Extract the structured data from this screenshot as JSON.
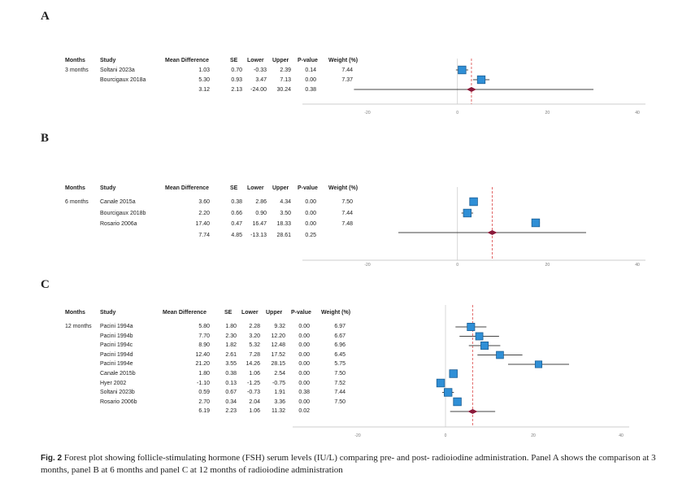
{
  "panels": [
    {
      "letter": "A",
      "headers": [
        "Months",
        "Study",
        "Mean Difference",
        "SE",
        "Lower",
        "Upper",
        "P-value",
        "Weight (%)"
      ],
      "group_label": "3 months",
      "rows": [
        {
          "study": "Soltani 2023a",
          "md": "1.03",
          "se": "0.70",
          "lower": "-0.33",
          "upper": "2.39",
          "p": "0.14",
          "w": "7.44"
        },
        {
          "study": "Bourcigaux 2018a",
          "md": "5.30",
          "se": "0.93",
          "lower": "3.47",
          "upper": "7.13",
          "p": "0.00",
          "w": "7.37"
        },
        {
          "study": "",
          "md": "3.12",
          "se": "2.13",
          "lower": "-24.00",
          "upper": "30.24",
          "p": "0.38",
          "w": ""
        }
      ],
      "ticks": [
        "-20",
        "0",
        "20",
        "40"
      ]
    },
    {
      "letter": "B",
      "headers": [
        "Months",
        "Study",
        "Mean Difference",
        "SE",
        "Lower",
        "Upper",
        "P-value",
        "Weight (%)"
      ],
      "group_label": "6 months",
      "rows": [
        {
          "study": "Canale 2015a",
          "md": "3.60",
          "se": "0.38",
          "lower": "2.86",
          "upper": "4.34",
          "p": "0.00",
          "w": "7.50"
        },
        {
          "study": "Bourcigaux 2018b",
          "md": "2.20",
          "se": "0.66",
          "lower": "0.90",
          "upper": "3.50",
          "p": "0.00",
          "w": "7.44"
        },
        {
          "study": "Rosario 2006a",
          "md": "17.40",
          "se": "0.47",
          "lower": "16.47",
          "upper": "18.33",
          "p": "0.00",
          "w": "7.48"
        },
        {
          "study": "",
          "md": "7.74",
          "se": "4.85",
          "lower": "-13.13",
          "upper": "28.61",
          "p": "0.25",
          "w": ""
        }
      ],
      "ticks": [
        "-20",
        "0",
        "20",
        "40"
      ]
    },
    {
      "letter": "C",
      "headers": [
        "Months",
        "Study",
        "Mean Difference",
        "SE",
        "Lower",
        "Upper",
        "P-value",
        "Weight (%)"
      ],
      "group_label": "12 months",
      "rows": [
        {
          "study": "Pacini 1994a",
          "md": "5.80",
          "se": "1.80",
          "lower": "2.28",
          "upper": "9.32",
          "p": "0.00",
          "w": "6.97"
        },
        {
          "study": "Pacini 1994b",
          "md": "7.70",
          "se": "2.30",
          "lower": "3.20",
          "upper": "12.20",
          "p": "0.00",
          "w": "6.67"
        },
        {
          "study": "Pacini 1994c",
          "md": "8.90",
          "se": "1.82",
          "lower": "5.32",
          "upper": "12.48",
          "p": "0.00",
          "w": "6.96"
        },
        {
          "study": "Pacini 1994d",
          "md": "12.40",
          "se": "2.61",
          "lower": "7.28",
          "upper": "17.52",
          "p": "0.00",
          "w": "6.45"
        },
        {
          "study": "Pacini 1994e",
          "md": "21.20",
          "se": "3.55",
          "lower": "14.26",
          "upper": "28.15",
          "p": "0.00",
          "w": "5.75"
        },
        {
          "study": "Canale 2015b",
          "md": "1.80",
          "se": "0.38",
          "lower": "1.06",
          "upper": "2.54",
          "p": "0.00",
          "w": "7.50"
        },
        {
          "study": "Hyer 2002",
          "md": "-1.10",
          "se": "0.13",
          "lower": "-1.25",
          "upper": "-0.75",
          "p": "0.00",
          "w": "7.52"
        },
        {
          "study": "Soltani 2023b",
          "md": "0.59",
          "se": "0.67",
          "lower": "-0.73",
          "upper": "1.91",
          "p": "0.38",
          "w": "7.44"
        },
        {
          "study": "Rosario 2006b",
          "md": "2.70",
          "se": "0.34",
          "lower": "2.04",
          "upper": "3.36",
          "p": "0.00",
          "w": "7.50"
        },
        {
          "study": "",
          "md": "6.19",
          "se": "2.23",
          "lower": "1.06",
          "upper": "11.32",
          "p": "0.02",
          "w": ""
        }
      ],
      "ticks": [
        "-20",
        "0",
        "20",
        "40"
      ]
    }
  ],
  "caption": {
    "label": "Fig. 2",
    "text": "Forest plot showing follicle-stimulating hormone (FSH) serum levels (IU/L) comparing pre- and post- radioiodine administration. Panel A shows the comparison at 3 months, panel B at 6 months and panel C at 12 months of radioiodine administration"
  },
  "colors": {
    "study_marker": "#2f8fd6",
    "pooled_marker": "#8b1a3a",
    "reference_line": "#e26a6a",
    "ci_line": "#444444"
  },
  "chart_data": [
    {
      "type": "forest",
      "studies": [
        "Soltani 2023a",
        "Bourcigaux 2018a"
      ],
      "estimates": [
        1.03,
        5.3
      ],
      "ci_lower": [
        -0.33,
        3.47
      ],
      "ci_upper": [
        2.39,
        7.13
      ],
      "weights": [
        7.44,
        7.37
      ],
      "pooled": {
        "estimate": 3.12,
        "lower": -24.0,
        "upper": 30.24
      },
      "xlim": [
        -20,
        40
      ],
      "xticks": [
        -20,
        0,
        20,
        40
      ]
    },
    {
      "type": "forest",
      "studies": [
        "Canale 2015a",
        "Bourcigaux 2018b",
        "Rosario 2006a"
      ],
      "estimates": [
        3.6,
        2.2,
        17.4
      ],
      "ci_lower": [
        2.86,
        0.9,
        16.47
      ],
      "ci_upper": [
        4.34,
        3.5,
        18.33
      ],
      "weights": [
        7.5,
        7.44,
        7.48
      ],
      "pooled": {
        "estimate": 7.74,
        "lower": -13.13,
        "upper": 28.61
      },
      "xlim": [
        -20,
        40
      ],
      "xticks": [
        -20,
        0,
        20,
        40
      ]
    },
    {
      "type": "forest",
      "studies": [
        "Pacini 1994a",
        "Pacini 1994b",
        "Pacini 1994c",
        "Pacini 1994d",
        "Pacini 1994e",
        "Canale 2015b",
        "Hyer 2002",
        "Soltani 2023b",
        "Rosario 2006b"
      ],
      "estimates": [
        5.8,
        7.7,
        8.9,
        12.4,
        21.2,
        1.8,
        -1.1,
        0.59,
        2.7
      ],
      "ci_lower": [
        2.28,
        3.2,
        5.32,
        7.28,
        14.26,
        1.06,
        -1.25,
        -0.73,
        2.04
      ],
      "ci_upper": [
        9.32,
        12.2,
        12.48,
        17.52,
        28.15,
        2.54,
        -0.75,
        1.91,
        3.36
      ],
      "weights": [
        6.97,
        6.67,
        6.96,
        6.45,
        5.75,
        7.5,
        7.52,
        7.44,
        7.5
      ],
      "pooled": {
        "estimate": 6.19,
        "lower": 1.06,
        "upper": 11.32
      },
      "xlim": [
        -20,
        40
      ],
      "xticks": [
        -20,
        0,
        20,
        40
      ]
    }
  ]
}
